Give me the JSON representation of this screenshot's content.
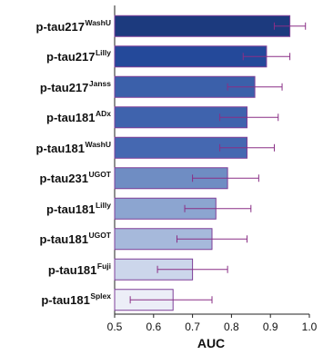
{
  "chart_data": {
    "type": "bar",
    "orientation": "horizontal",
    "xlabel": "AUC",
    "xlim": [
      0.5,
      1.0
    ],
    "xticks": [
      "0.5",
      "0.6",
      "0.7",
      "0.8",
      "0.9",
      "1.0"
    ],
    "grid": false,
    "bars": [
      {
        "label": "p-tau217",
        "sup": "WashU",
        "value": 0.95,
        "ci": [
          0.91,
          0.99
        ],
        "fill": "#1c3a7e"
      },
      {
        "label": "p-tau217",
        "sup": "Lilly",
        "value": 0.89,
        "ci": [
          0.83,
          0.95
        ],
        "fill": "#24499a"
      },
      {
        "label": "p-tau217",
        "sup": "Janss",
        "value": 0.86,
        "ci": [
          0.79,
          0.93
        ],
        "fill": "#3b60aa"
      },
      {
        "label": "p-tau181",
        "sup": "ADx",
        "value": 0.84,
        "ci": [
          0.77,
          0.92
        ],
        "fill": "#3f63ad"
      },
      {
        "label": "p-tau181",
        "sup": "WashU",
        "value": 0.84,
        "ci": [
          0.77,
          0.91
        ],
        "fill": "#4568b1"
      },
      {
        "label": "p-tau231",
        "sup": "UGOT",
        "value": 0.79,
        "ci": [
          0.7,
          0.87
        ],
        "fill": "#6f8dc3"
      },
      {
        "label": "p-tau181",
        "sup": "Lilly",
        "value": 0.76,
        "ci": [
          0.68,
          0.85
        ],
        "fill": "#8ca5d0"
      },
      {
        "label": "p-tau181",
        "sup": "UGOT",
        "value": 0.75,
        "ci": [
          0.66,
          0.84
        ],
        "fill": "#a6b9db"
      },
      {
        "label": "p-tau181",
        "sup": "Fuji",
        "value": 0.7,
        "ci": [
          0.61,
          0.79
        ],
        "fill": "#ccd6eb"
      },
      {
        "label": "p-tau181",
        "sup": "Splex",
        "value": 0.65,
        "ci": [
          0.54,
          0.75
        ],
        "fill": "#eceef7"
      }
    ],
    "colors": {
      "bar_border": "#7e3f98",
      "error_bar": "#8a2f86",
      "axis": "#222222"
    }
  }
}
